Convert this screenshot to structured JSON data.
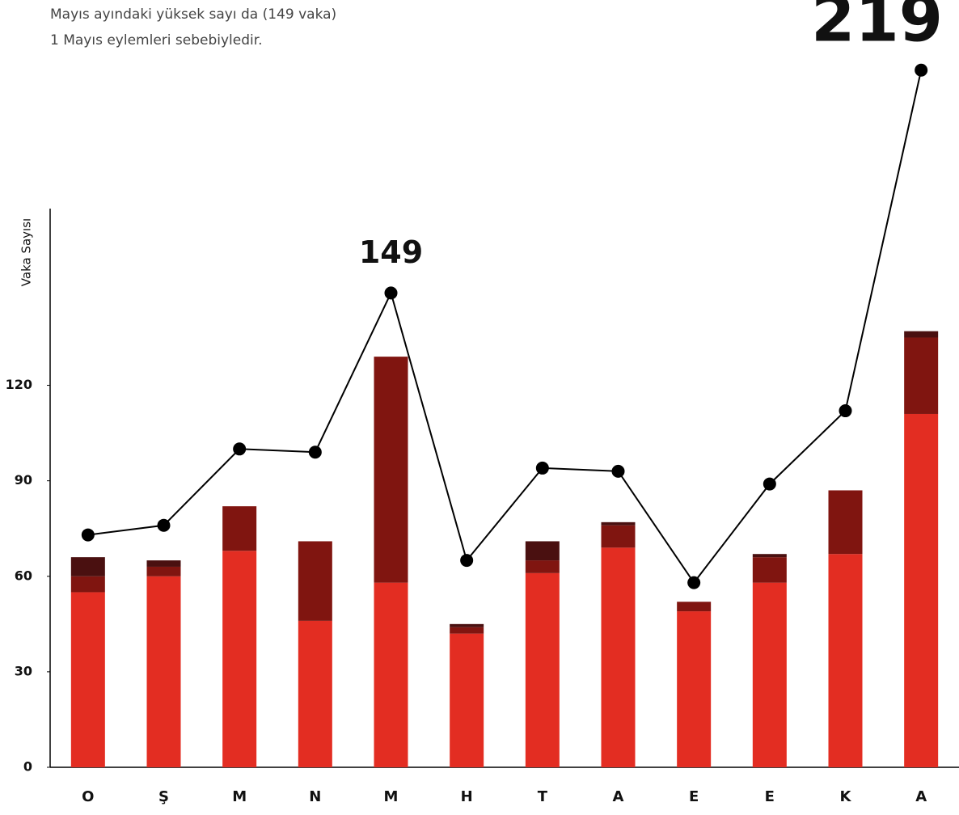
{
  "chart_data": {
    "type": "bar",
    "subtitle": [
      "Mayıs ayındaki yüksek sayı da (149 vaka)",
      "1 Mayıs eylemleri sebebiyledir."
    ],
    "y_label": "Vaka Sayısı",
    "categories": [
      "O",
      "Ş",
      "M",
      "N",
      "M",
      "H",
      "T",
      "A",
      "E",
      "E",
      "K",
      "A"
    ],
    "series": [
      {
        "color": "#e32d22",
        "values": [
          55,
          60,
          68,
          46,
          58,
          42,
          61,
          69,
          49,
          58,
          67,
          111
        ]
      },
      {
        "color": "#801510",
        "values": [
          5,
          3,
          14,
          25,
          71,
          2,
          4,
          7,
          3,
          8,
          20,
          24
        ]
      },
      {
        "color": "#4a1010",
        "values": [
          6,
          2,
          0,
          0,
          0,
          1,
          6,
          1,
          0,
          1,
          0,
          2
        ]
      }
    ],
    "line": {
      "type": "line",
      "color": "#000000",
      "values": [
        73,
        76,
        100,
        99,
        149,
        65,
        94,
        93,
        58,
        89,
        112,
        219
      ],
      "value_labels": [
        null,
        null,
        null,
        null,
        "149",
        null,
        null,
        null,
        null,
        null,
        null,
        "219"
      ]
    },
    "ylim": [
      0,
      175
    ],
    "yticks": [
      0,
      30,
      60,
      90,
      120
    ],
    "stacked": true
  }
}
